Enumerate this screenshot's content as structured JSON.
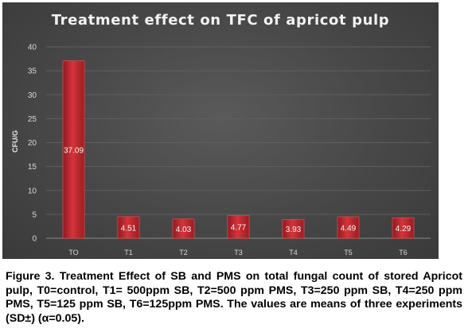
{
  "chart_data": {
    "type": "bar",
    "title": "Treatment effect on TFC of apricot pulp",
    "ylabel": "CFU/G",
    "xlabel": "",
    "categories": [
      "TO",
      "T1",
      "T2",
      "T3",
      "T4",
      "T5",
      "T6"
    ],
    "values": [
      37.09,
      4.51,
      4.03,
      4.77,
      3.93,
      4.49,
      4.29
    ],
    "data_labels": [
      "37.09",
      "4.51",
      "4.03",
      "4.77",
      "3.93",
      "4.49",
      "4.29"
    ],
    "ylim": [
      0,
      40
    ],
    "yticks": [
      "0",
      "5",
      "10",
      "15",
      "20",
      "25",
      "30",
      "35",
      "40"
    ],
    "grid": true,
    "legend": "none",
    "bar_color": "#c0282e",
    "background_color": "#474747"
  },
  "caption": "Figure 3. Treatment Effect of SB and PMS on total fungal count of stored Apricot pulp, T0=control, T1= 500ppm SB, T2=500 ppm PMS, T3=250 ppm SB, T4=250 ppm PMS, T5=125 ppm SB, T6=125ppm PMS. The values are means of three experiments (SD±) (α=0.05)."
}
